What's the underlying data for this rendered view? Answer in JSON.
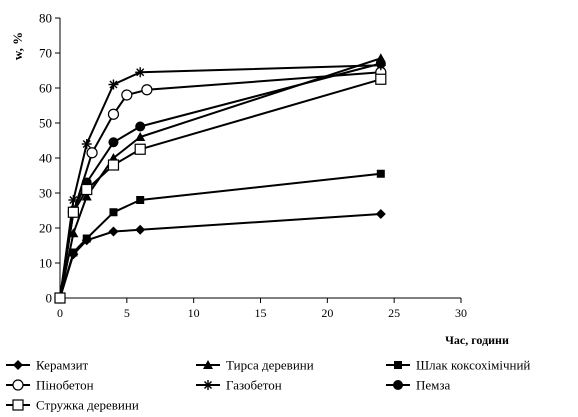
{
  "chart_data": {
    "type": "line",
    "title": "",
    "xlabel": "Час, години",
    "ylabel": "w, %",
    "xlim": [
      0,
      30
    ],
    "ylim": [
      0,
      80
    ],
    "xticks": [
      0,
      5,
      10,
      15,
      20,
      25,
      30
    ],
    "yticks": [
      0,
      10,
      20,
      30,
      40,
      50,
      60,
      70,
      80
    ],
    "grid": false,
    "legend_position": "bottom",
    "series": [
      {
        "name": "Керамзит",
        "marker": "diamond",
        "x": [
          0,
          1,
          2,
          4,
          6,
          24
        ],
        "y": [
          0,
          12.5,
          16.5,
          19,
          19.5,
          24
        ]
      },
      {
        "name": "Тирса деревини",
        "marker": "triangle",
        "x": [
          0,
          1,
          2,
          4,
          6,
          24
        ],
        "y": [
          0,
          18.5,
          29,
          40,
          46,
          68.5
        ]
      },
      {
        "name": "Шлак коксохімічний",
        "marker": "square-filled",
        "x": [
          0,
          1,
          2,
          4,
          6,
          24
        ],
        "y": [
          0,
          13,
          17,
          24.5,
          28,
          35.5
        ]
      },
      {
        "name": "Пінобетон",
        "marker": "circle-open",
        "x": [
          0,
          1,
          2.4,
          4,
          5,
          6.5,
          24
        ],
        "y": [
          0,
          24.5,
          41.5,
          52.5,
          58,
          59.5,
          64.5
        ]
      },
      {
        "name": "Газобетон",
        "marker": "star",
        "x": [
          0,
          1,
          2,
          4,
          6,
          24
        ],
        "y": [
          0,
          28,
          44,
          61,
          64.5,
          66.5
        ]
      },
      {
        "name": "Пемза",
        "marker": "circle-filled",
        "x": [
          0,
          1,
          2,
          4,
          6,
          24
        ],
        "y": [
          0,
          25,
          33,
          44.5,
          49,
          67
        ]
      },
      {
        "name": "Стружка деревини",
        "marker": "square-open",
        "x": [
          0,
          1,
          2,
          4,
          6,
          24
        ],
        "y": [
          0,
          24.5,
          31,
          38,
          42.5,
          62.5
        ]
      }
    ]
  }
}
